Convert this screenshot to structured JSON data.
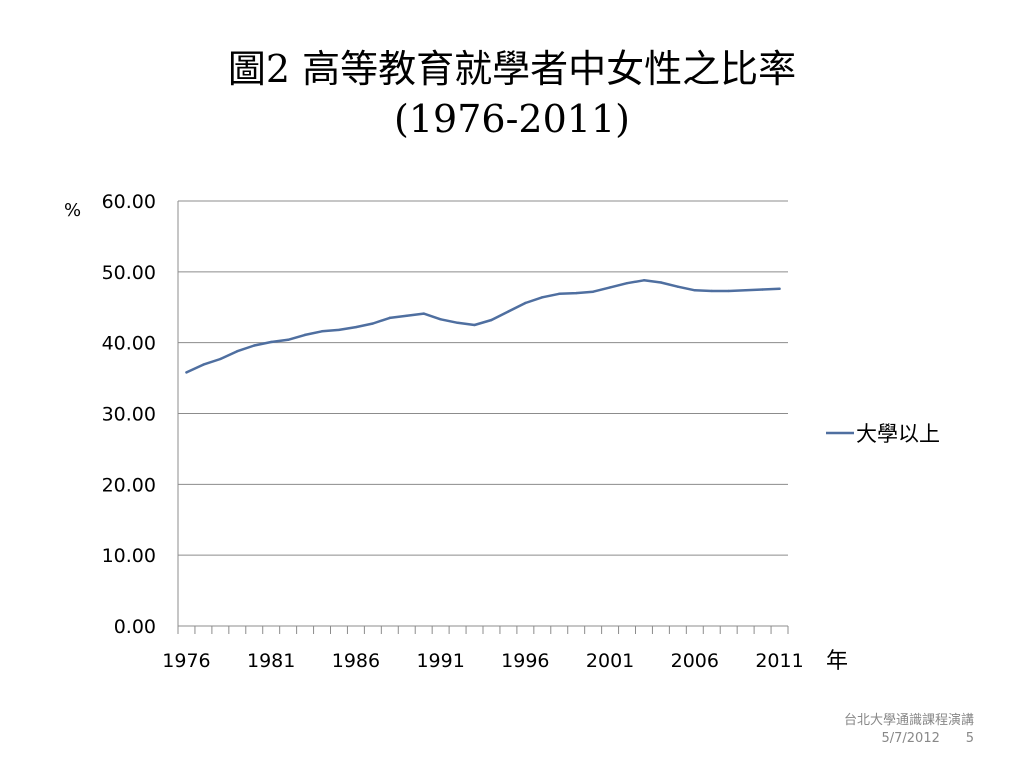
{
  "slide": {
    "title_line1": "圖2 高等教育就學者中女性之比率",
    "title_line2": "(1976-2011)",
    "footer_text": "台北大學通識課程演講",
    "footer_date": "5/7/2012",
    "page_number": "5"
  },
  "chart_data": {
    "type": "line",
    "title": "",
    "xlabel": "年",
    "ylabel": "%",
    "ylim": [
      0,
      60
    ],
    "yticks": [
      "0.00",
      "10.00",
      "20.00",
      "30.00",
      "40.00",
      "50.00",
      "60.00"
    ],
    "xtick_labels": [
      "1976",
      "1981",
      "1986",
      "1991",
      "1996",
      "2001",
      "2006",
      "2011"
    ],
    "grid": true,
    "legend_position": "right",
    "x": [
      1976,
      1977,
      1978,
      1979,
      1980,
      1981,
      1982,
      1983,
      1984,
      1985,
      1986,
      1987,
      1988,
      1989,
      1990,
      1991,
      1992,
      1993,
      1994,
      1995,
      1996,
      1997,
      1998,
      1999,
      2000,
      2001,
      2002,
      2003,
      2004,
      2005,
      2006,
      2007,
      2008,
      2009,
      2010,
      2011
    ],
    "series": [
      {
        "name": "大學以上",
        "color": "#4F6FA0",
        "values": [
          35.8,
          36.9,
          37.7,
          38.8,
          39.6,
          40.1,
          40.4,
          41.1,
          41.6,
          41.8,
          42.2,
          42.7,
          43.5,
          43.8,
          44.1,
          43.3,
          42.8,
          42.5,
          43.2,
          44.4,
          45.6,
          46.4,
          46.9,
          47.0,
          47.2,
          47.8,
          48.4,
          48.8,
          48.5,
          47.9,
          47.4,
          47.3,
          47.3,
          47.4,
          47.5,
          47.6
        ]
      }
    ]
  }
}
